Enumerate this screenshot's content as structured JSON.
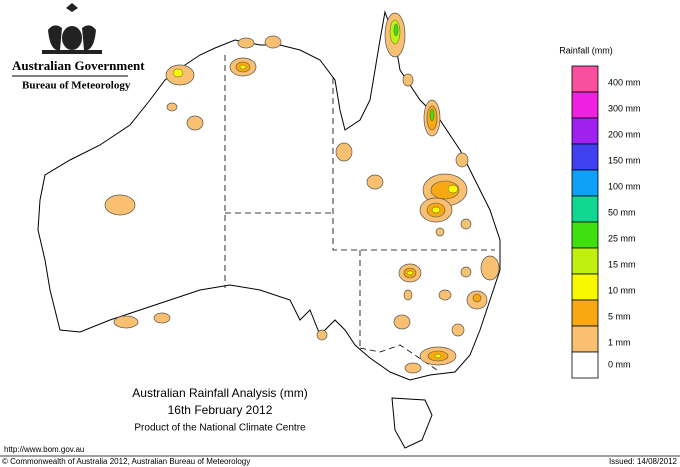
{
  "header": {
    "government": "Australian Government",
    "agency": "Bureau of Meteorology"
  },
  "title": {
    "lines": [
      "Australian Rainfall Analysis (mm)",
      "16th February 2012",
      "Product of the National Climate Centre"
    ]
  },
  "legend": {
    "title": "Rainfall (mm)",
    "items": [
      {
        "label": "400 mm",
        "color": "#f8509e"
      },
      {
        "label": "300 mm",
        "color": "#f020e0"
      },
      {
        "label": "200 mm",
        "color": "#a020f0"
      },
      {
        "label": "150 mm",
        "color": "#4040f0"
      },
      {
        "label": "100 mm",
        "color": "#10a0f8"
      },
      {
        "label": "50 mm",
        "color": "#10d890"
      },
      {
        "label": "25 mm",
        "color": "#40e010"
      },
      {
        "label": "15 mm",
        "color": "#c0f010"
      },
      {
        "label": "10 mm",
        "color": "#f8f800"
      },
      {
        "label": "5 mm",
        "color": "#f8a810"
      },
      {
        "label": "1 mm",
        "color": "#f8c070"
      },
      {
        "label": "0 mm",
        "color": "#ffffff"
      }
    ]
  },
  "footer": {
    "url": "http://www.bom.gov.au",
    "copyright": "© Commonwealth of Australia 2012, Australian Bureau of Meteorology",
    "issued": "Issued: 14/08/2012"
  }
}
